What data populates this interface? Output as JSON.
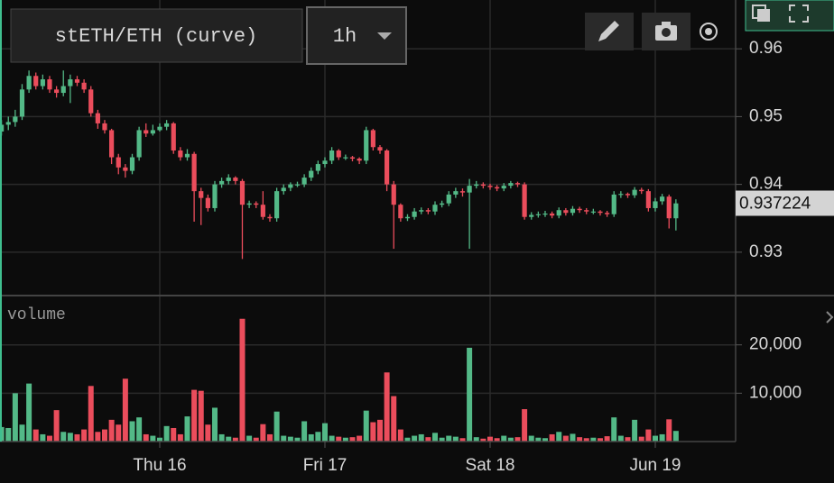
{
  "chart_data": {
    "type": "candlestick",
    "title": "stETH/ETH (curve)",
    "interval": "1h",
    "volume_label": "volume",
    "up_color": "#53b987",
    "down_color": "#eb4d5c",
    "xticks": [
      {
        "value": 23,
        "label": "Thu 16"
      },
      {
        "value": 47,
        "label": "Fri 17"
      },
      {
        "value": 71,
        "label": "Sat 18"
      },
      {
        "value": 95,
        "label": "Jun 19"
      }
    ],
    "ylim": [
      0.9236,
      0.9672
    ],
    "yticks": [
      0.96,
      0.95,
      0.94,
      0.93
    ],
    "last_price": 0.937224,
    "volume_ylim": [
      0,
      30200
    ],
    "volume_yticks": [
      {
        "value": 20000,
        "label": "20,000"
      },
      {
        "value": 10000,
        "label": "10,000"
      }
    ],
    "open": [
      0.9478,
      0.9488,
      0.9492,
      0.95,
      0.954,
      0.956,
      0.9545,
      0.9555,
      0.954,
      0.9535,
      0.9545,
      0.9555,
      0.955,
      0.954,
      0.9505,
      0.949,
      0.948,
      0.944,
      0.9425,
      0.942,
      0.944,
      0.948,
      0.9475,
      0.948,
      0.9485,
      0.949,
      0.945,
      0.944,
      0.9445,
      0.939,
      0.938,
      0.9365,
      0.94,
      0.9405,
      0.941,
      0.9405,
      0.937,
      0.9372,
      0.937,
      0.9352,
      0.935,
      0.939,
      0.9395,
      0.94,
      0.94,
      0.941,
      0.942,
      0.943,
      0.9435,
      0.945,
      0.944,
      0.944,
      0.9438,
      0.9435,
      0.948,
      0.9455,
      0.945,
      0.94,
      0.937,
      0.935,
      0.9352,
      0.936,
      0.9362,
      0.936,
      0.937,
      0.9372,
      0.9385,
      0.939,
      0.9388,
      0.9398,
      0.94,
      0.9398,
      0.9396,
      0.9394,
      0.9398,
      0.9402,
      0.94,
      0.9352,
      0.9355,
      0.9356,
      0.9357,
      0.9354,
      0.9362,
      0.9358,
      0.9364,
      0.9362,
      0.936,
      0.936,
      0.9358,
      0.9356,
      0.9385,
      0.9386,
      0.9384,
      0.9392,
      0.939,
      0.9365,
      0.9375,
      0.9382,
      0.935
    ],
    "close": [
      0.9488,
      0.9492,
      0.95,
      0.954,
      0.956,
      0.9545,
      0.9555,
      0.954,
      0.9535,
      0.9545,
      0.9555,
      0.955,
      0.954,
      0.9505,
      0.949,
      0.948,
      0.944,
      0.9425,
      0.942,
      0.944,
      0.948,
      0.9475,
      0.948,
      0.9485,
      0.949,
      0.945,
      0.944,
      0.9445,
      0.939,
      0.938,
      0.9365,
      0.94,
      0.9405,
      0.941,
      0.9405,
      0.937,
      0.9372,
      0.937,
      0.9352,
      0.935,
      0.939,
      0.9395,
      0.94,
      0.94,
      0.941,
      0.942,
      0.943,
      0.9435,
      0.945,
      0.944,
      0.944,
      0.9438,
      0.9435,
      0.948,
      0.9455,
      0.945,
      0.94,
      0.937,
      0.935,
      0.9352,
      0.936,
      0.9362,
      0.936,
      0.937,
      0.9372,
      0.9385,
      0.939,
      0.9388,
      0.9398,
      0.94,
      0.9398,
      0.9396,
      0.9394,
      0.9398,
      0.9402,
      0.94,
      0.9352,
      0.9355,
      0.9356,
      0.9357,
      0.9354,
      0.9362,
      0.9358,
      0.9364,
      0.9362,
      0.936,
      0.936,
      0.9358,
      0.9356,
      0.9385,
      0.9386,
      0.9384,
      0.9392,
      0.939,
      0.9365,
      0.9375,
      0.9382,
      0.935,
      0.9372
    ],
    "high": [
      0.9495,
      0.95,
      0.951,
      0.9548,
      0.9568,
      0.9565,
      0.9562,
      0.956,
      0.9545,
      0.9568,
      0.9562,
      0.956,
      0.9555,
      0.9545,
      0.951,
      0.9495,
      0.9482,
      0.9445,
      0.943,
      0.9445,
      0.9485,
      0.949,
      0.9488,
      0.949,
      0.9495,
      0.9492,
      0.9455,
      0.9452,
      0.9448,
      0.9395,
      0.9385,
      0.9405,
      0.941,
      0.9415,
      0.9412,
      0.9408,
      0.9376,
      0.9375,
      0.939,
      0.9356,
      0.9395,
      0.94,
      0.9403,
      0.9404,
      0.9415,
      0.9425,
      0.9435,
      0.944,
      0.9455,
      0.9452,
      0.9444,
      0.9442,
      0.944,
      0.9485,
      0.9482,
      0.9458,
      0.9452,
      0.9405,
      0.9372,
      0.9356,
      0.9365,
      0.9366,
      0.9365,
      0.9375,
      0.9376,
      0.939,
      0.9395,
      0.9394,
      0.9408,
      0.9405,
      0.9403,
      0.9401,
      0.9399,
      0.9402,
      0.9405,
      0.9404,
      0.9403,
      0.9359,
      0.936,
      0.9361,
      0.936,
      0.9366,
      0.9365,
      0.9368,
      0.9367,
      0.9365,
      0.9364,
      0.9362,
      0.9361,
      0.939,
      0.939,
      0.9388,
      0.9396,
      0.9395,
      0.9393,
      0.938,
      0.9386,
      0.9385,
      0.9378
    ],
    "low": [
      0.9472,
      0.948,
      0.9485,
      0.9495,
      0.9535,
      0.954,
      0.954,
      0.9535,
      0.9528,
      0.953,
      0.952,
      0.9545,
      0.9535,
      0.95,
      0.9482,
      0.9475,
      0.943,
      0.9415,
      0.941,
      0.9415,
      0.9435,
      0.947,
      0.9472,
      0.9478,
      0.948,
      0.9445,
      0.9435,
      0.9435,
      0.9345,
      0.934,
      0.936,
      0.936,
      0.9395,
      0.94,
      0.94,
      0.929,
      0.9365,
      0.9365,
      0.9348,
      0.9345,
      0.9345,
      0.9385,
      0.939,
      0.9396,
      0.9396,
      0.9405,
      0.9415,
      0.9425,
      0.943,
      0.9436,
      0.9436,
      0.9434,
      0.943,
      0.943,
      0.945,
      0.9445,
      0.939,
      0.9305,
      0.9345,
      0.9346,
      0.9348,
      0.9356,
      0.9356,
      0.9355,
      0.9366,
      0.9368,
      0.938,
      0.9382,
      0.9305,
      0.9394,
      0.9394,
      0.9392,
      0.939,
      0.939,
      0.9394,
      0.9396,
      0.9348,
      0.9348,
      0.9351,
      0.9352,
      0.935,
      0.935,
      0.9354,
      0.9354,
      0.9358,
      0.9356,
      0.9356,
      0.9354,
      0.9352,
      0.9352,
      0.938,
      0.938,
      0.938,
      0.9386,
      0.936,
      0.936,
      0.937,
      0.9335,
      0.9332
    ],
    "volume": [
      3000,
      2800,
      10000,
      3500,
      12000,
      2500,
      1500,
      1200,
      6500,
      2000,
      1800,
      1500,
      2500,
      11500,
      2000,
      2500,
      4500,
      3500,
      13000,
      4200,
      5000,
      1500,
      1200,
      800,
      3200,
      2800,
      1500,
      5200,
      10700,
      10500,
      3500,
      7000,
      1500,
      1000,
      800,
      25400,
      1200,
      800,
      3600,
      1500,
      6200,
      1200,
      1000,
      800,
      4200,
      1500,
      2000,
      3800,
      1200,
      1000,
      800,
      900,
      1200,
      6400,
      4000,
      4500,
      14300,
      9400,
      2500,
      800,
      1200,
      1500,
      900,
      1800,
      800,
      1200,
      1000,
      700,
      19400,
      900,
      600,
      1000,
      700,
      1200,
      800,
      900,
      6700,
      1200,
      800,
      700,
      1500,
      2000,
      1200,
      1600,
      900,
      700,
      800,
      700,
      1100,
      5000,
      1200,
      900,
      4500,
      1000,
      2500,
      1200,
      1500,
      4600,
      2200
    ]
  }
}
